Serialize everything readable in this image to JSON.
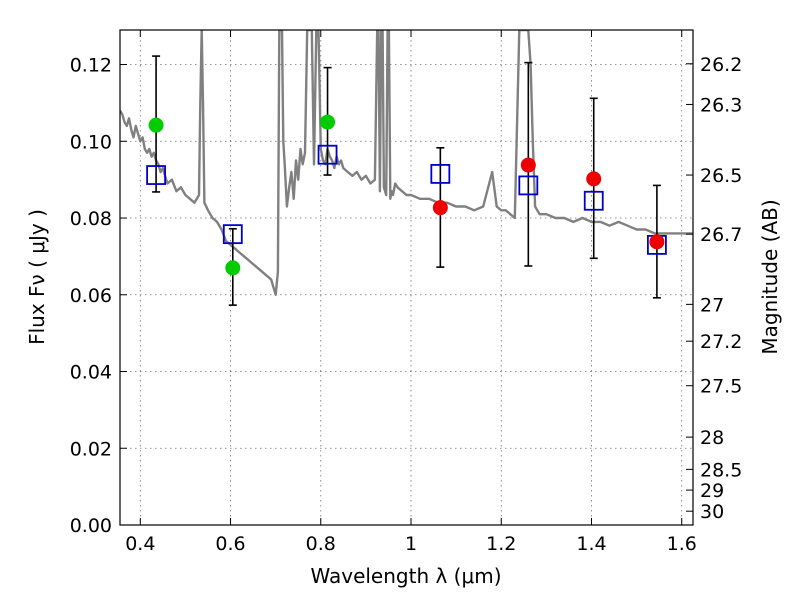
{
  "chart_data": {
    "type": "scatter",
    "title": "",
    "xlabel": "Wavelength  λ (μm)",
    "ylabel": "Flux  Fν  ( μJy )",
    "y2label": "Magnitude (AB)",
    "xlim": [
      0.355,
      1.625
    ],
    "ylim": [
      0.0,
      0.129
    ],
    "grid": true,
    "xticks": [
      0.4,
      0.6,
      0.8,
      1.0,
      1.2,
      1.4,
      1.6
    ],
    "xtick_labels": [
      "0.4",
      "0.6",
      "0.8",
      "1",
      "1.2",
      "1.4",
      "1.6"
    ],
    "yticks": [
      0.0,
      0.02,
      0.04,
      0.06,
      0.08,
      0.1,
      0.12
    ],
    "ytick_labels": [
      "0.00",
      "0.02",
      "0.04",
      "0.06",
      "0.08",
      "0.10",
      "0.12"
    ],
    "mag_ticks": [
      {
        "label": "26.2",
        "flux": 0.1202
      },
      {
        "label": "26.3",
        "flux": 0.1096
      },
      {
        "label": "26.5",
        "flux": 0.0912
      },
      {
        "label": "26.7",
        "flux": 0.0758
      },
      {
        "label": "27",
        "flux": 0.0575
      },
      {
        "label": "27.2",
        "flux": 0.0479
      },
      {
        "label": "27.5",
        "flux": 0.0363
      },
      {
        "label": "28",
        "flux": 0.0229
      },
      {
        "label": "28.5",
        "flux": 0.0145
      },
      {
        "label": "29",
        "flux": 0.0091
      },
      {
        "label": "30",
        "flux": 0.0036
      }
    ],
    "series": [
      {
        "name": "model spectrum",
        "type": "line",
        "color": "#808080",
        "x": [
          0.355,
          0.36,
          0.365,
          0.37,
          0.375,
          0.38,
          0.385,
          0.39,
          0.395,
          0.4,
          0.405,
          0.41,
          0.415,
          0.42,
          0.425,
          0.43,
          0.435,
          0.44,
          0.445,
          0.45,
          0.455,
          0.46,
          0.47,
          0.48,
          0.49,
          0.5,
          0.51,
          0.52,
          0.53,
          0.533,
          0.536,
          0.539,
          0.542,
          0.55,
          0.56,
          0.57,
          0.58,
          0.59,
          0.6,
          0.61,
          0.62,
          0.63,
          0.64,
          0.65,
          0.66,
          0.67,
          0.68,
          0.69,
          0.695,
          0.7,
          0.705,
          0.708,
          0.711,
          0.714,
          0.717,
          0.72,
          0.725,
          0.73,
          0.735,
          0.74,
          0.745,
          0.75,
          0.755,
          0.76,
          0.765,
          0.77,
          0.775,
          0.78,
          0.785,
          0.79,
          0.795,
          0.8,
          0.805,
          0.81,
          0.815,
          0.82,
          0.825,
          0.83,
          0.835,
          0.84,
          0.845,
          0.85,
          0.86,
          0.87,
          0.88,
          0.89,
          0.9,
          0.91,
          0.92,
          0.925,
          0.928,
          0.931,
          0.934,
          0.937,
          0.94,
          0.945,
          0.948,
          0.951,
          0.954,
          0.957,
          0.96,
          0.965,
          0.97,
          0.98,
          0.99,
          1.0,
          1.02,
          1.04,
          1.06,
          1.08,
          1.1,
          1.12,
          1.14,
          1.16,
          1.18,
          1.19,
          1.2,
          1.21,
          1.22,
          1.23,
          1.24,
          1.245,
          1.25,
          1.255,
          1.26,
          1.265,
          1.27,
          1.275,
          1.28,
          1.285,
          1.29,
          1.3,
          1.32,
          1.34,
          1.36,
          1.38,
          1.4,
          1.42,
          1.44,
          1.46,
          1.48,
          1.5,
          1.52,
          1.54,
          1.56,
          1.58,
          1.6,
          1.625
        ],
        "y": [
          0.108,
          0.107,
          0.105,
          0.104,
          0.106,
          0.103,
          0.101,
          0.104,
          0.102,
          0.1,
          0.101,
          0.098,
          0.097,
          0.098,
          0.096,
          0.097,
          0.095,
          0.094,
          0.092,
          0.093,
          0.091,
          0.089,
          0.09,
          0.087,
          0.088,
          0.086,
          0.085,
          0.084,
          0.086,
          0.11,
          0.129,
          0.11,
          0.084,
          0.082,
          0.08,
          0.079,
          0.077,
          0.074,
          0.073,
          0.072,
          0.071,
          0.07,
          0.069,
          0.068,
          0.067,
          0.066,
          0.065,
          0.064,
          0.062,
          0.06,
          0.066,
          0.129,
          0.129,
          0.129,
          0.1,
          0.094,
          0.083,
          0.088,
          0.092,
          0.085,
          0.095,
          0.09,
          0.098,
          0.094,
          0.097,
          0.129,
          0.129,
          0.129,
          0.094,
          0.129,
          0.129,
          0.098,
          0.095,
          0.094,
          0.098,
          0.096,
          0.095,
          0.093,
          0.096,
          0.094,
          0.095,
          0.093,
          0.092,
          0.091,
          0.092,
          0.09,
          0.091,
          0.089,
          0.09,
          0.129,
          0.129,
          0.087,
          0.129,
          0.129,
          0.088,
          0.086,
          0.129,
          0.129,
          0.085,
          0.087,
          0.086,
          0.089,
          0.088,
          0.087,
          0.086,
          0.086,
          0.085,
          0.085,
          0.084,
          0.084,
          0.083,
          0.083,
          0.082,
          0.083,
          0.092,
          0.083,
          0.082,
          0.082,
          0.081,
          0.08,
          0.129,
          0.129,
          0.129,
          0.129,
          0.129,
          0.12,
          0.1,
          0.083,
          0.082,
          0.081,
          0.081,
          0.081,
          0.08,
          0.08,
          0.079,
          0.08,
          0.079,
          0.079,
          0.078,
          0.079,
          0.078,
          0.077,
          0.077,
          0.076,
          0.076,
          0.076,
          0.076,
          0.076
        ]
      },
      {
        "name": "blue squares (model photometry)",
        "type": "scatter",
        "marker": "square-open",
        "color": "#0000cc",
        "x": [
          0.435,
          0.605,
          0.815,
          1.065,
          1.26,
          1.405,
          1.545
        ],
        "y": [
          0.0912,
          0.0758,
          0.0965,
          0.0915,
          0.0885,
          0.0845,
          0.073
        ]
      },
      {
        "name": "green points",
        "type": "scatter",
        "marker": "circle",
        "color": "#00cc00",
        "x": [
          0.435,
          0.605,
          0.815
        ],
        "y": [
          0.1042,
          0.067,
          0.105
        ]
      },
      {
        "name": "red points",
        "type": "scatter",
        "marker": "circle",
        "color": "#ee0000",
        "x": [
          1.065,
          1.26,
          1.405,
          1.545
        ],
        "y": [
          0.0827,
          0.0938,
          0.0902,
          0.0738
        ]
      }
    ],
    "errorbars": [
      {
        "x": 0.435,
        "low": 0.0868,
        "high": 0.1222
      },
      {
        "x": 0.605,
        "low": 0.0573,
        "high": 0.0772
      },
      {
        "x": 0.815,
        "low": 0.0912,
        "high": 0.1192
      },
      {
        "x": 1.065,
        "low": 0.0672,
        "high": 0.0983
      },
      {
        "x": 1.26,
        "low": 0.0675,
        "high": 0.1205
      },
      {
        "x": 1.405,
        "low": 0.0695,
        "high": 0.1112
      },
      {
        "x": 1.545,
        "low": 0.0592,
        "high": 0.0885
      }
    ]
  }
}
